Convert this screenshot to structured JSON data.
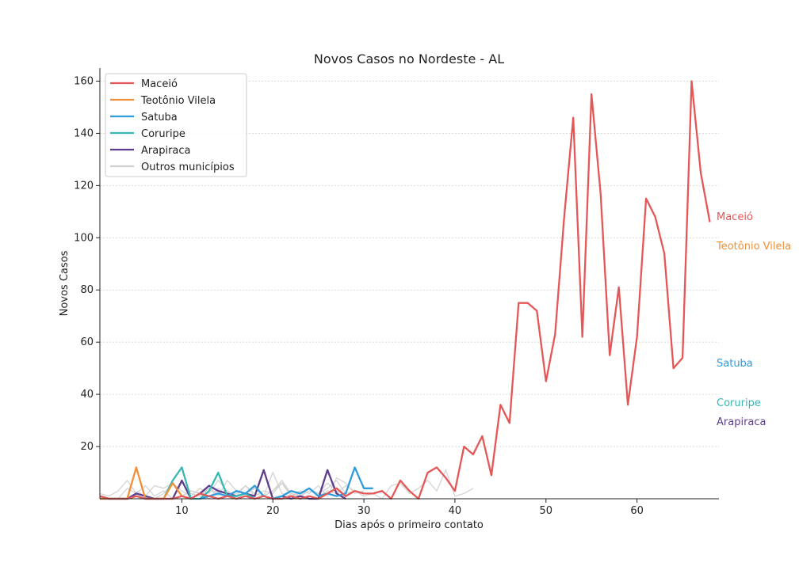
{
  "chart_data": {
    "type": "line",
    "title": "Novos Casos no Nordeste - AL",
    "xlabel": "Dias após o primeiro contato",
    "ylabel": "Novos Casos",
    "xlim": [
      1,
      69
    ],
    "ylim": [
      0,
      165
    ],
    "x_ticks": [
      10,
      20,
      30,
      40,
      50,
      60
    ],
    "y_ticks": [
      20,
      40,
      60,
      80,
      100,
      120,
      140,
      160
    ],
    "grid": "horizontal dashed",
    "legend_position": "top-left",
    "series": [
      {
        "name": "Maceió",
        "color": "#e45756",
        "end_label": "Maceió",
        "x": [
          1,
          2,
          3,
          4,
          5,
          6,
          7,
          8,
          9,
          10,
          11,
          12,
          13,
          14,
          15,
          16,
          17,
          18,
          19,
          20,
          21,
          22,
          23,
          24,
          25,
          26,
          27,
          28,
          29,
          30,
          31,
          32,
          33,
          34,
          35,
          36,
          37,
          38,
          39,
          40,
          41,
          42,
          43,
          44,
          45,
          46,
          47,
          48,
          49,
          50,
          51,
          52,
          53,
          54,
          55,
          56,
          57,
          58,
          59,
          60,
          61,
          62,
          63,
          64,
          65,
          66,
          67,
          68
        ],
        "values": [
          1,
          0,
          0,
          0,
          1,
          0,
          0,
          0,
          0,
          1,
          0,
          2,
          1,
          0,
          1,
          0,
          1,
          0,
          1,
          0,
          0,
          1,
          0,
          1,
          0,
          2,
          4,
          1,
          3,
          2,
          2,
          3,
          0,
          7,
          3,
          0,
          10,
          12,
          8,
          3,
          20,
          17,
          24,
          9,
          36,
          29,
          75,
          75,
          72,
          45,
          63,
          108,
          146,
          62,
          155,
          117,
          55,
          81,
          36,
          62,
          115,
          108,
          94,
          50,
          54,
          160,
          125,
          106
        ]
      },
      {
        "name": "Teotônio Vilela",
        "color": "#f0903a",
        "end_label": "Teotônio Vilela",
        "x": [
          1,
          2,
          3,
          4,
          5,
          6,
          7,
          8,
          9,
          10,
          11
        ],
        "values": [
          0,
          0,
          0,
          0,
          12,
          0,
          0,
          0,
          6,
          1,
          0
        ]
      },
      {
        "name": "Satuba",
        "color": "#2e9bdc",
        "end_label": "Satuba",
        "x": [
          12,
          13,
          14,
          15,
          16,
          17,
          18,
          19,
          20,
          21,
          22,
          23,
          24,
          25,
          26,
          27,
          28,
          29,
          30,
          31
        ],
        "values": [
          0,
          1,
          2,
          1,
          3,
          2,
          5,
          1,
          0,
          1,
          3,
          2,
          4,
          1,
          2,
          1,
          2,
          12,
          4,
          4
        ]
      },
      {
        "name": "Coruripe",
        "color": "#35b8b2",
        "end_label": "Coruripe",
        "x": [
          1,
          2,
          3,
          4,
          5,
          6,
          7,
          8,
          9,
          10,
          11,
          12,
          13,
          14,
          15,
          16,
          17,
          18
        ],
        "values": [
          1,
          0,
          0,
          0,
          1,
          0,
          0,
          0,
          7,
          12,
          0,
          0,
          3,
          10,
          1,
          1,
          2,
          0
        ]
      },
      {
        "name": "Arapiraca",
        "color": "#5e3e8c",
        "end_label": "Arapiraca",
        "x": [
          1,
          2,
          3,
          4,
          5,
          6,
          7,
          8,
          9,
          10,
          11,
          12,
          13,
          14,
          15,
          16,
          17,
          18,
          19,
          20,
          21,
          22,
          23,
          24,
          25,
          26,
          27,
          28
        ],
        "values": [
          0,
          0,
          0,
          0,
          2,
          1,
          0,
          0,
          0,
          7,
          0,
          2,
          5,
          3,
          2,
          1,
          2,
          1,
          11,
          0,
          1,
          0,
          1,
          0,
          0,
          11,
          2,
          0
        ]
      }
    ],
    "others": {
      "name": "Outros municípios",
      "color": "#cfcfcf",
      "series": [
        {
          "x": [
            1,
            2,
            3,
            4,
            5,
            6,
            7,
            8,
            9,
            10,
            11,
            12,
            13,
            14,
            15,
            16,
            17,
            18,
            19,
            20,
            21,
            22,
            23,
            24,
            25,
            26,
            27,
            28,
            29,
            30
          ],
          "values": [
            2,
            1,
            3,
            7,
            2,
            1,
            5,
            4,
            6,
            1,
            3,
            2,
            4,
            1,
            7,
            3,
            2,
            4,
            1,
            10,
            2,
            1,
            3,
            2,
            5,
            1,
            8,
            6,
            2,
            3
          ]
        },
        {
          "x": [
            3,
            4,
            5,
            6,
            7,
            8,
            9,
            10,
            11,
            12,
            13,
            14,
            15,
            16,
            17,
            18,
            19,
            20,
            21,
            22,
            23,
            24,
            25,
            26,
            27,
            28
          ],
          "values": [
            0,
            4,
            2,
            5,
            1,
            3,
            0,
            6,
            2,
            1,
            4,
            2,
            3,
            1,
            5,
            2,
            1,
            3,
            7,
            2,
            1,
            4,
            2,
            6,
            3,
            1
          ]
        },
        {
          "x": [
            10,
            11,
            12,
            13,
            14,
            15,
            16,
            17,
            18,
            19,
            20,
            21,
            22,
            23,
            24,
            25,
            26,
            27,
            28,
            29,
            30,
            31,
            32,
            33,
            34,
            35,
            36,
            37,
            38,
            39,
            40,
            41,
            42
          ],
          "values": [
            1,
            3,
            2,
            0,
            4,
            1,
            2,
            5,
            1,
            3,
            2,
            6,
            1,
            2,
            4,
            1,
            3,
            2,
            5,
            3,
            1,
            2,
            0,
            5,
            6,
            2,
            4,
            7,
            3,
            11,
            1,
            2,
            4
          ]
        },
        {
          "x": [
            5,
            6,
            7,
            8,
            9,
            10,
            11,
            12,
            13,
            14,
            15,
            16,
            17,
            18,
            19,
            20,
            21,
            22,
            23,
            24,
            25,
            26,
            27,
            28,
            29,
            30
          ],
          "values": [
            3,
            1,
            0,
            2,
            6,
            3,
            1,
            4,
            2,
            7,
            3,
            1,
            2,
            4,
            1,
            3,
            6,
            2,
            1,
            3,
            2,
            4,
            7,
            2,
            3,
            1
          ]
        }
      ]
    }
  }
}
